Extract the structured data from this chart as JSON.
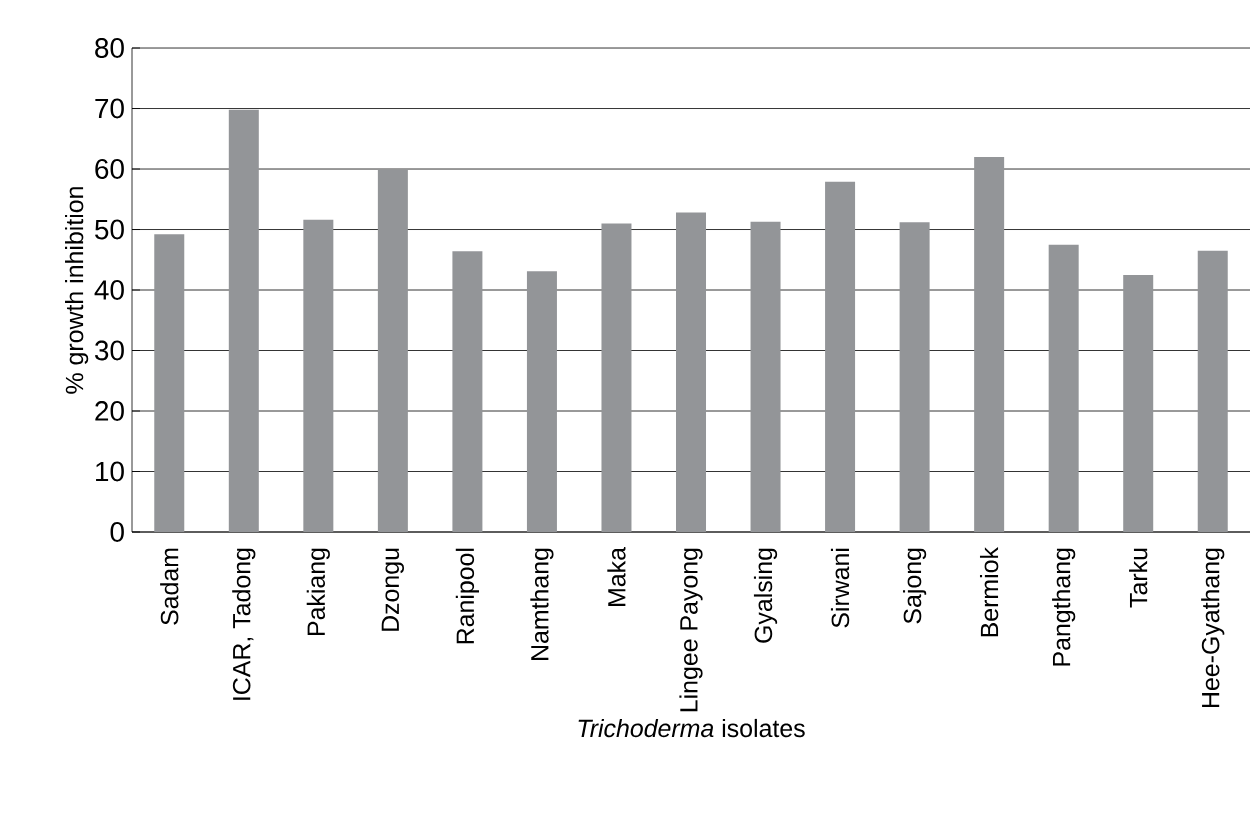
{
  "chart_data": {
    "type": "bar",
    "xlabel": "*Trichoderma* isolates",
    "ylabel": "% growth inhibition",
    "categories": [
      "Sadam",
      "ICAR, Tadong",
      "Pakiang",
      "Dzongu",
      "Ranipool",
      "Namthang",
      "Maka",
      "Lingee Payong",
      "Gyalsing",
      "Sirwani",
      "Sajong",
      "Bermiok",
      "Pangthang",
      "Tarku",
      "Hee-Gyathang"
    ],
    "values": [
      49.2,
      69.8,
      51.6,
      59.9,
      46.4,
      43.1,
      51.0,
      52.8,
      51.3,
      57.9,
      51.2,
      62.0,
      47.5,
      42.5,
      46.5
    ],
    "color": "#939598",
    "ylim": [
      0,
      80
    ],
    "yticks": [
      0,
      10,
      20,
      30,
      40,
      50,
      60,
      70,
      80
    ],
    "grid": "y"
  }
}
